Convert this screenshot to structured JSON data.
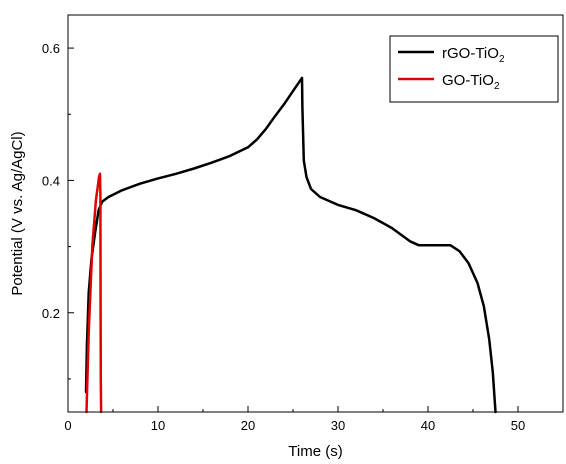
{
  "chart_data": {
    "type": "line",
    "xlabel": "Time (s)",
    "ylabel": "Potential (V vs. Ag/AgCl)",
    "xlim": [
      0,
      55
    ],
    "ylim": [
      0.05,
      0.65
    ],
    "xticks": [
      0,
      10,
      20,
      30,
      40,
      50
    ],
    "yticks": [
      0.2,
      0.4,
      0.6
    ],
    "xtick_labels": [
      "0",
      "10",
      "20",
      "30",
      "40",
      "50"
    ],
    "ytick_labels": [
      "0.2",
      "0.4",
      "0.6"
    ],
    "grid": false,
    "legend_position": "top-right",
    "series": [
      {
        "name": "rGO-TiO",
        "name_subscript": "2",
        "color": "#000000",
        "x": [
          2.0,
          2.1,
          2.3,
          2.6,
          3.0,
          3.4,
          3.8,
          4.5,
          6,
          8,
          10,
          12,
          14,
          16,
          18,
          20,
          21,
          22,
          23,
          24,
          25,
          25.6,
          26.0,
          26.05,
          26.2,
          26.5,
          27,
          28,
          30,
          32,
          34,
          36,
          38,
          39,
          40,
          41,
          42.5,
          43.5,
          44.5,
          45.5,
          46.2,
          46.8,
          47.2,
          47.5
        ],
        "y": [
          0.08,
          0.15,
          0.23,
          0.28,
          0.32,
          0.355,
          0.368,
          0.375,
          0.385,
          0.395,
          0.403,
          0.41,
          0.418,
          0.427,
          0.437,
          0.45,
          0.462,
          0.478,
          0.497,
          0.515,
          0.535,
          0.547,
          0.555,
          0.51,
          0.43,
          0.405,
          0.387,
          0.375,
          0.363,
          0.355,
          0.343,
          0.328,
          0.308,
          0.302,
          0.302,
          0.302,
          0.302,
          0.293,
          0.275,
          0.245,
          0.21,
          0.16,
          0.11,
          0.05
        ]
      },
      {
        "name": "GO-TiO",
        "name_subscript": "2",
        "color": "#e00000",
        "x": [
          2.05,
          2.3,
          2.7,
          3.1,
          3.3,
          3.45,
          3.55,
          3.6,
          3.62,
          3.65,
          3.68
        ],
        "y": [
          0.05,
          0.17,
          0.3,
          0.37,
          0.39,
          0.405,
          0.41,
          0.38,
          0.2,
          0.1,
          0.05
        ]
      }
    ]
  }
}
